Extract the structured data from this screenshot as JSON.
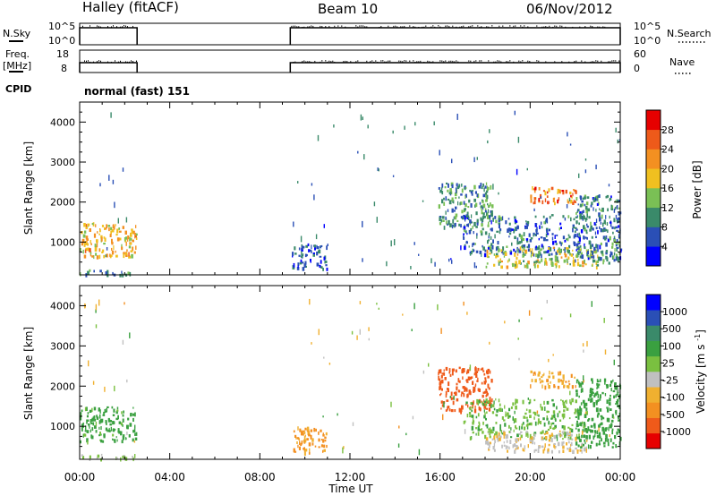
{
  "header": {
    "station": "Halley (fitACF)",
    "beam": "Beam 10",
    "date": "06/Nov/2012"
  },
  "strips": {
    "nsky": {
      "label": "N.Sky",
      "right_label": "N.Search",
      "tick_top": "10^5",
      "tick_bottom": "10^0",
      "right_tick_top": "10^5",
      "right_tick_bottom": "10^0"
    },
    "freq": {
      "label_line1": "Freq.",
      "label_line2": "[MHz]",
      "right_label": "Nave",
      "tick_top": "18",
      "tick_bottom": "8",
      "right_tick_top": "60",
      "right_tick_bottom": "0"
    },
    "cpid": {
      "label": "CPID",
      "mode": "normal (fast) 151"
    },
    "operating_intervals_ut_hours": [
      [
        0.0,
        2.55
      ],
      [
        9.35,
        24.0
      ]
    ]
  },
  "axes": {
    "xlabel": "Time UT",
    "xticks": [
      "00:00",
      "04:00",
      "08:00",
      "12:00",
      "16:00",
      "20:00",
      "00:00"
    ],
    "ylabel": "Slant Range [km]",
    "yticks": [
      "1000",
      "2000",
      "3000",
      "4000"
    ]
  },
  "colors": {
    "power_scale": [
      "#0000ff",
      "#2a4fb6",
      "#3a8a6a",
      "#7ac055",
      "#f0c020",
      "#f39021",
      "#ee5a1a",
      "#e60000"
    ],
    "velocity_scale": [
      "#e60000",
      "#ef5a1a",
      "#f39021",
      "#f0b030",
      "#c0c0c0",
      "#7ac040",
      "#3aa040",
      "#3a8a6a",
      "#2a4fb6",
      "#0000ff"
    ]
  },
  "chart_data": [
    {
      "type": "heatmap",
      "name": "power",
      "colorbar_label": "Power [dB]",
      "colorbar_ticks": [
        "4",
        "8",
        "12",
        "16",
        "20",
        "24",
        "28"
      ],
      "xlim_hours": [
        0,
        24
      ],
      "ylim_km": [
        180,
        4500
      ],
      "value_range": [
        0,
        30
      ],
      "regions": [
        {
          "t": [
            0.0,
            2.5
          ],
          "r": [
            650,
            1500
          ],
          "v_center": 18
        },
        {
          "t": [
            0.0,
            2.5
          ],
          "r": [
            200,
            320
          ],
          "v_center": 8
        },
        {
          "t": [
            9.4,
            11.0
          ],
          "r": [
            350,
            1000
          ],
          "v_center": 6
        },
        {
          "t": [
            15.9,
            18.3
          ],
          "r": [
            1400,
            2500
          ],
          "v_center": 10
        },
        {
          "t": [
            17.0,
            22.5
          ],
          "r": [
            700,
            1700
          ],
          "v_center": 7
        },
        {
          "t": [
            18.0,
            23.0
          ],
          "r": [
            400,
            900
          ],
          "v_center": 15
        },
        {
          "t": [
            20.0,
            22.0
          ],
          "r": [
            2000,
            2400
          ],
          "v_center": 22
        },
        {
          "t": [
            22.0,
            24.0
          ],
          "r": [
            500,
            2200
          ],
          "v_center": 8
        }
      ]
    },
    {
      "type": "heatmap",
      "name": "velocity",
      "colorbar_label": "Velocity [m s^-1]",
      "colorbar_ticks": [
        "1000",
        "500",
        "100",
        "25",
        "-25",
        "-100",
        "-500",
        "-1000"
      ],
      "xlim_hours": [
        0,
        24
      ],
      "ylim_km": [
        180,
        4500
      ],
      "value_range": [
        -1000,
        1000
      ],
      "regions": [
        {
          "t": [
            0.0,
            2.5
          ],
          "r": [
            650,
            1500
          ],
          "v_center": 150
        },
        {
          "t": [
            0.0,
            2.5
          ],
          "r": [
            200,
            320
          ],
          "v_center": 30
        },
        {
          "t": [
            9.4,
            11.0
          ],
          "r": [
            350,
            1000
          ],
          "v_center": -120
        },
        {
          "t": [
            15.9,
            18.3
          ],
          "r": [
            1400,
            2500
          ],
          "v_center": -500
        },
        {
          "t": [
            17.0,
            22.5
          ],
          "r": [
            700,
            1700
          ],
          "v_center": 90
        },
        {
          "t": [
            18.0,
            22.5
          ],
          "r": [
            400,
            900
          ],
          "v_center": -20
        },
        {
          "t": [
            20.0,
            22.0
          ],
          "r": [
            2000,
            2400
          ],
          "v_center": -100
        },
        {
          "t": [
            22.0,
            24.0
          ],
          "r": [
            500,
            2200
          ],
          "v_center": 200
        }
      ]
    }
  ]
}
